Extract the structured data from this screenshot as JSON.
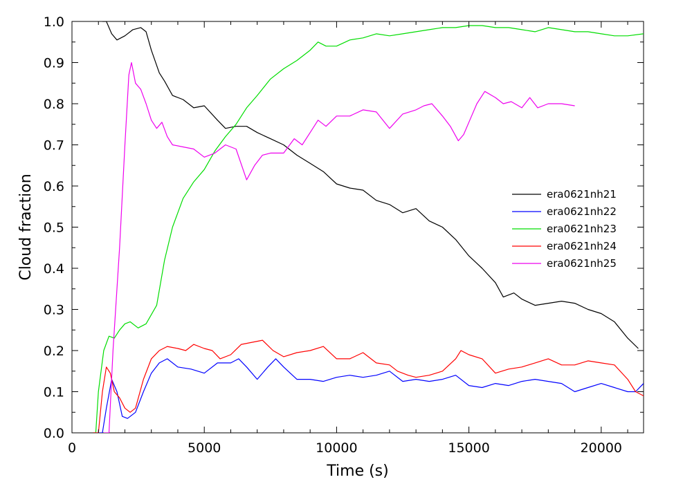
{
  "chart_data": {
    "type": "line",
    "xlabel": "Time (s)",
    "ylabel": "Cloud fraction",
    "xlim": [
      0,
      21600
    ],
    "ylim": [
      0.0,
      1.0
    ],
    "xticks": [
      0,
      5000,
      10000,
      15000,
      20000
    ],
    "xtick_labels": [
      "0",
      "5000",
      "10000",
      "15000",
      "20000"
    ],
    "yticks": [
      0.0,
      0.1,
      0.2,
      0.3,
      0.4,
      0.5,
      0.6,
      0.7,
      0.8,
      0.9,
      1.0
    ],
    "ytick_labels": [
      "0.0",
      "0.1",
      "0.2",
      "0.3",
      "0.4",
      "0.5",
      "0.6",
      "0.7",
      "0.8",
      "0.9",
      "1.0"
    ],
    "grid": false,
    "legend_position": "center-right",
    "series": [
      {
        "name": "era0621nh21",
        "color": "#000000",
        "points": [
          [
            1150,
            1.0
          ],
          [
            1300,
            1.0
          ],
          [
            1500,
            0.97
          ],
          [
            1700,
            0.955
          ],
          [
            2000,
            0.965
          ],
          [
            2300,
            0.98
          ],
          [
            2600,
            0.985
          ],
          [
            2800,
            0.975
          ],
          [
            3000,
            0.93
          ],
          [
            3300,
            0.875
          ],
          [
            3500,
            0.855
          ],
          [
            3800,
            0.82
          ],
          [
            4200,
            0.81
          ],
          [
            4600,
            0.79
          ],
          [
            5000,
            0.795
          ],
          [
            5500,
            0.76
          ],
          [
            5800,
            0.74
          ],
          [
            6200,
            0.745
          ],
          [
            6600,
            0.745
          ],
          [
            7000,
            0.73
          ],
          [
            7500,
            0.715
          ],
          [
            8000,
            0.7
          ],
          [
            8500,
            0.675
          ],
          [
            9000,
            0.655
          ],
          [
            9500,
            0.635
          ],
          [
            10000,
            0.605
          ],
          [
            10500,
            0.595
          ],
          [
            11000,
            0.59
          ],
          [
            11500,
            0.565
          ],
          [
            12000,
            0.555
          ],
          [
            12500,
            0.535
          ],
          [
            13000,
            0.545
          ],
          [
            13500,
            0.515
          ],
          [
            14000,
            0.5
          ],
          [
            14500,
            0.47
          ],
          [
            15000,
            0.43
          ],
          [
            15500,
            0.4
          ],
          [
            16000,
            0.365
          ],
          [
            16300,
            0.33
          ],
          [
            16700,
            0.34
          ],
          [
            17000,
            0.325
          ],
          [
            17500,
            0.31
          ],
          [
            18000,
            0.315
          ],
          [
            18500,
            0.32
          ],
          [
            19000,
            0.315
          ],
          [
            19500,
            0.3
          ],
          [
            20000,
            0.29
          ],
          [
            20500,
            0.27
          ],
          [
            21000,
            0.23
          ],
          [
            21400,
            0.205
          ]
        ]
      },
      {
        "name": "era0621nh22",
        "color": "#0000ff",
        "points": [
          [
            800,
            0.0
          ],
          [
            1150,
            0.0
          ],
          [
            1300,
            0.06
          ],
          [
            1500,
            0.13
          ],
          [
            1700,
            0.1
          ],
          [
            1900,
            0.04
          ],
          [
            2100,
            0.035
          ],
          [
            2400,
            0.05
          ],
          [
            2700,
            0.1
          ],
          [
            3000,
            0.145
          ],
          [
            3300,
            0.17
          ],
          [
            3600,
            0.18
          ],
          [
            4000,
            0.16
          ],
          [
            4500,
            0.155
          ],
          [
            5000,
            0.145
          ],
          [
            5500,
            0.17
          ],
          [
            6000,
            0.17
          ],
          [
            6300,
            0.18
          ],
          [
            6600,
            0.16
          ],
          [
            7000,
            0.13
          ],
          [
            7400,
            0.16
          ],
          [
            7700,
            0.18
          ],
          [
            8000,
            0.16
          ],
          [
            8500,
            0.13
          ],
          [
            9000,
            0.13
          ],
          [
            9500,
            0.125
          ],
          [
            10000,
            0.135
          ],
          [
            10500,
            0.14
          ],
          [
            11000,
            0.135
          ],
          [
            11500,
            0.14
          ],
          [
            12000,
            0.15
          ],
          [
            12500,
            0.125
          ],
          [
            13000,
            0.13
          ],
          [
            13500,
            0.125
          ],
          [
            14000,
            0.13
          ],
          [
            14500,
            0.14
          ],
          [
            15000,
            0.115
          ],
          [
            15500,
            0.11
          ],
          [
            16000,
            0.12
          ],
          [
            16500,
            0.115
          ],
          [
            17000,
            0.125
          ],
          [
            17500,
            0.13
          ],
          [
            18000,
            0.125
          ],
          [
            18500,
            0.12
          ],
          [
            19000,
            0.1
          ],
          [
            19500,
            0.11
          ],
          [
            20000,
            0.12
          ],
          [
            20500,
            0.11
          ],
          [
            21000,
            0.1
          ],
          [
            21300,
            0.1
          ],
          [
            21600,
            0.12
          ]
        ]
      },
      {
        "name": "era0621nh23",
        "color": "#00dd00",
        "points": [
          [
            800,
            0.0
          ],
          [
            900,
            0.0
          ],
          [
            1000,
            0.1
          ],
          [
            1200,
            0.2
          ],
          [
            1400,
            0.235
          ],
          [
            1600,
            0.23
          ],
          [
            1800,
            0.25
          ],
          [
            2000,
            0.265
          ],
          [
            2200,
            0.27
          ],
          [
            2500,
            0.255
          ],
          [
            2800,
            0.265
          ],
          [
            3200,
            0.31
          ],
          [
            3500,
            0.42
          ],
          [
            3800,
            0.5
          ],
          [
            4200,
            0.57
          ],
          [
            4600,
            0.61
          ],
          [
            5000,
            0.64
          ],
          [
            5400,
            0.685
          ],
          [
            5800,
            0.72
          ],
          [
            6200,
            0.75
          ],
          [
            6600,
            0.79
          ],
          [
            7000,
            0.82
          ],
          [
            7500,
            0.86
          ],
          [
            8000,
            0.885
          ],
          [
            8500,
            0.905
          ],
          [
            9000,
            0.93
          ],
          [
            9300,
            0.95
          ],
          [
            9600,
            0.94
          ],
          [
            10000,
            0.94
          ],
          [
            10500,
            0.955
          ],
          [
            11000,
            0.96
          ],
          [
            11500,
            0.97
          ],
          [
            12000,
            0.965
          ],
          [
            12500,
            0.97
          ],
          [
            13000,
            0.975
          ],
          [
            13500,
            0.98
          ],
          [
            14000,
            0.985
          ],
          [
            14500,
            0.985
          ],
          [
            15000,
            0.99
          ],
          [
            15500,
            0.99
          ],
          [
            16000,
            0.985
          ],
          [
            16500,
            0.985
          ],
          [
            17000,
            0.98
          ],
          [
            17500,
            0.975
          ],
          [
            18000,
            0.985
          ],
          [
            18500,
            0.98
          ],
          [
            19000,
            0.975
          ],
          [
            19500,
            0.975
          ],
          [
            20000,
            0.97
          ],
          [
            20500,
            0.965
          ],
          [
            21000,
            0.965
          ],
          [
            21600,
            0.97
          ]
        ]
      },
      {
        "name": "era0621nh24",
        "color": "#ff0000",
        "points": [
          [
            800,
            0.0
          ],
          [
            1000,
            0.0
          ],
          [
            1150,
            0.1
          ],
          [
            1300,
            0.16
          ],
          [
            1450,
            0.145
          ],
          [
            1600,
            0.1
          ],
          [
            1800,
            0.085
          ],
          [
            2000,
            0.06
          ],
          [
            2200,
            0.05
          ],
          [
            2400,
            0.06
          ],
          [
            2700,
            0.13
          ],
          [
            3000,
            0.18
          ],
          [
            3300,
            0.2
          ],
          [
            3600,
            0.21
          ],
          [
            4000,
            0.205
          ],
          [
            4300,
            0.2
          ],
          [
            4600,
            0.215
          ],
          [
            5000,
            0.205
          ],
          [
            5300,
            0.2
          ],
          [
            5600,
            0.18
          ],
          [
            6000,
            0.19
          ],
          [
            6400,
            0.215
          ],
          [
            6800,
            0.22
          ],
          [
            7200,
            0.225
          ],
          [
            7600,
            0.2
          ],
          [
            8000,
            0.185
          ],
          [
            8500,
            0.195
          ],
          [
            9000,
            0.2
          ],
          [
            9500,
            0.21
          ],
          [
            10000,
            0.18
          ],
          [
            10500,
            0.18
          ],
          [
            11000,
            0.195
          ],
          [
            11500,
            0.17
          ],
          [
            12000,
            0.165
          ],
          [
            12300,
            0.15
          ],
          [
            12700,
            0.14
          ],
          [
            13000,
            0.135
          ],
          [
            13500,
            0.14
          ],
          [
            14000,
            0.15
          ],
          [
            14500,
            0.18
          ],
          [
            14700,
            0.2
          ],
          [
            15000,
            0.19
          ],
          [
            15500,
            0.18
          ],
          [
            16000,
            0.145
          ],
          [
            16500,
            0.155
          ],
          [
            17000,
            0.16
          ],
          [
            17500,
            0.17
          ],
          [
            18000,
            0.18
          ],
          [
            18500,
            0.165
          ],
          [
            19000,
            0.165
          ],
          [
            19500,
            0.175
          ],
          [
            20000,
            0.17
          ],
          [
            20500,
            0.165
          ],
          [
            21000,
            0.13
          ],
          [
            21300,
            0.1
          ],
          [
            21600,
            0.09
          ]
        ]
      },
      {
        "name": "era0621nh25",
        "color": "#ee00ee",
        "points": [
          [
            1200,
            0.0
          ],
          [
            1400,
            0.0
          ],
          [
            1550,
            0.2
          ],
          [
            1800,
            0.45
          ],
          [
            2000,
            0.7
          ],
          [
            2150,
            0.87
          ],
          [
            2250,
            0.9
          ],
          [
            2400,
            0.85
          ],
          [
            2600,
            0.835
          ],
          [
            2800,
            0.8
          ],
          [
            3000,
            0.76
          ],
          [
            3200,
            0.74
          ],
          [
            3400,
            0.755
          ],
          [
            3600,
            0.72
          ],
          [
            3800,
            0.7
          ],
          [
            4200,
            0.695
          ],
          [
            4600,
            0.69
          ],
          [
            5000,
            0.67
          ],
          [
            5400,
            0.68
          ],
          [
            5800,
            0.7
          ],
          [
            6200,
            0.69
          ],
          [
            6600,
            0.615
          ],
          [
            6900,
            0.65
          ],
          [
            7200,
            0.675
          ],
          [
            7500,
            0.68
          ],
          [
            8000,
            0.68
          ],
          [
            8400,
            0.715
          ],
          [
            8700,
            0.7
          ],
          [
            9000,
            0.73
          ],
          [
            9300,
            0.76
          ],
          [
            9600,
            0.745
          ],
          [
            10000,
            0.77
          ],
          [
            10500,
            0.77
          ],
          [
            11000,
            0.785
          ],
          [
            11500,
            0.78
          ],
          [
            12000,
            0.74
          ],
          [
            12500,
            0.775
          ],
          [
            13000,
            0.785
          ],
          [
            13300,
            0.795
          ],
          [
            13600,
            0.8
          ],
          [
            14000,
            0.77
          ],
          [
            14300,
            0.745
          ],
          [
            14600,
            0.71
          ],
          [
            14800,
            0.725
          ],
          [
            15000,
            0.755
          ],
          [
            15300,
            0.8
          ],
          [
            15600,
            0.83
          ],
          [
            16000,
            0.815
          ],
          [
            16300,
            0.8
          ],
          [
            16600,
            0.805
          ],
          [
            17000,
            0.79
          ],
          [
            17300,
            0.815
          ],
          [
            17600,
            0.79
          ],
          [
            18000,
            0.8
          ],
          [
            18500,
            0.8
          ],
          [
            19000,
            0.795
          ]
        ]
      }
    ]
  }
}
